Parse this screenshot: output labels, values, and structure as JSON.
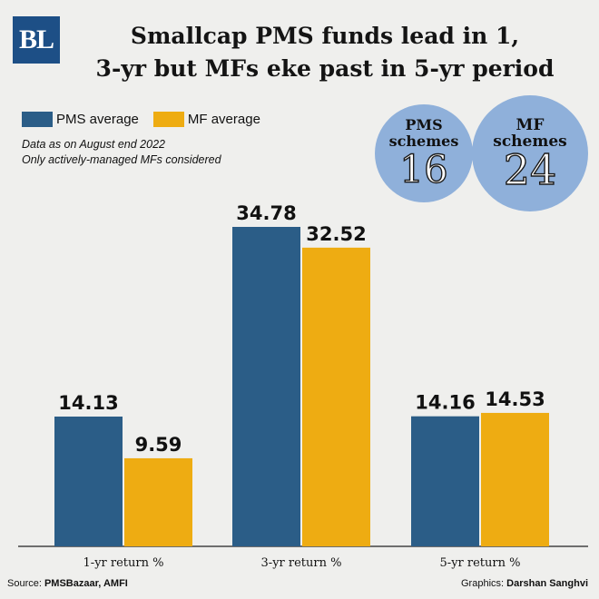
{
  "logo": {
    "text": "BL"
  },
  "header": {
    "title_line1": "Smallcap PMS funds lead in 1,",
    "title_line2": "3-yr but MFs eke past in 5-yr period"
  },
  "legend": {
    "pms_label": "PMS average",
    "mf_label": "MF average"
  },
  "notes": {
    "line1": "Data as on August end 2022",
    "line2": "Only actively-managed MFs considered"
  },
  "bubbles": {
    "pms": {
      "label_line1": "PMS",
      "label_line2": "schemes",
      "count": "16"
    },
    "mf": {
      "label_line1": "MF",
      "label_line2": "schemes",
      "count": "24"
    }
  },
  "footer": {
    "source_prefix": "Source: ",
    "source_text": "PMSBazaar, AMFI",
    "graphics_prefix": "Graphics: ",
    "graphics_text": "Darshan Sanghvi"
  },
  "colors": {
    "pms": "#2b5d87",
    "mf": "#eeac12",
    "background": "#efefed",
    "bubble": "#8fb0da"
  },
  "chart_data": {
    "type": "bar",
    "title": "Smallcap PMS funds lead in 1, 3-yr but MFs eke past in 5-yr period",
    "categories": [
      "1-yr return %",
      "3-yr return %",
      "5-yr return %"
    ],
    "series": [
      {
        "name": "PMS average",
        "values": [
          14.13,
          34.78,
          14.16
        ]
      },
      {
        "name": "MF average",
        "values": [
          9.59,
          32.52,
          14.53
        ]
      }
    ],
    "value_labels": [
      [
        "14.13",
        "34.78",
        "14.16"
      ],
      [
        "9.59",
        "32.52",
        "14.53"
      ]
    ],
    "ylim": [
      0,
      36
    ],
    "grid": false,
    "legend": "top-left"
  }
}
